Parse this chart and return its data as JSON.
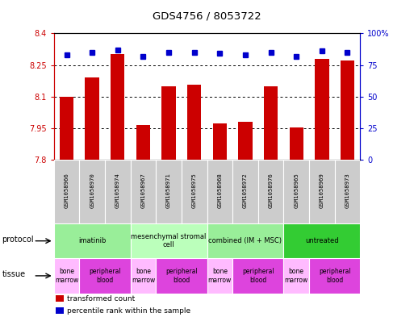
{
  "title": "GDS4756 / 8053722",
  "samples": [
    "GSM1058966",
    "GSM1058970",
    "GSM1058974",
    "GSM1058967",
    "GSM1058971",
    "GSM1058975",
    "GSM1058968",
    "GSM1058972",
    "GSM1058976",
    "GSM1058965",
    "GSM1058969",
    "GSM1058973"
  ],
  "bar_values": [
    8.1,
    8.19,
    8.3,
    7.965,
    8.15,
    8.155,
    7.975,
    7.98,
    8.15,
    7.955,
    8.28,
    8.27
  ],
  "dot_values": [
    83,
    85,
    87,
    82,
    85,
    85,
    84,
    83,
    85,
    82,
    86,
    85
  ],
  "ylim_left": [
    7.8,
    8.4
  ],
  "ylim_right": [
    0,
    100
  ],
  "yticks_left": [
    7.8,
    7.95,
    8.1,
    8.25,
    8.4
  ],
  "yticks_right": [
    0,
    25,
    50,
    75,
    100
  ],
  "ytick_labels_left": [
    "7.8",
    "7.95",
    "8.1",
    "8.25",
    "8.4"
  ],
  "ytick_labels_right": [
    "0",
    "25",
    "50",
    "75",
    "100%"
  ],
  "bar_color": "#cc0000",
  "dot_color": "#0000cc",
  "protocols": [
    {
      "label": "imatinib",
      "start": 0,
      "end": 3,
      "color": "#99ee99"
    },
    {
      "label": "mesenchymal stromal\ncell",
      "start": 3,
      "end": 6,
      "color": "#bbffbb"
    },
    {
      "label": "combined (IM + MSC)",
      "start": 6,
      "end": 9,
      "color": "#99ee99"
    },
    {
      "label": "untreated",
      "start": 9,
      "end": 12,
      "color": "#33cc33"
    }
  ],
  "tissues": [
    {
      "label": "bone\nmarrow",
      "start": 0,
      "end": 1,
      "color": "#ffbbff"
    },
    {
      "label": "peripheral\nblood",
      "start": 1,
      "end": 3,
      "color": "#dd44dd"
    },
    {
      "label": "bone\nmarrow",
      "start": 3,
      "end": 4,
      "color": "#ffbbff"
    },
    {
      "label": "peripheral\nblood",
      "start": 4,
      "end": 6,
      "color": "#dd44dd"
    },
    {
      "label": "bone\nmarrow",
      "start": 6,
      "end": 7,
      "color": "#ffbbff"
    },
    {
      "label": "peripheral\nblood",
      "start": 7,
      "end": 9,
      "color": "#dd44dd"
    },
    {
      "label": "bone\nmarrow",
      "start": 9,
      "end": 10,
      "color": "#ffbbff"
    },
    {
      "label": "peripheral\nblood",
      "start": 10,
      "end": 12,
      "color": "#dd44dd"
    }
  ],
  "legend_items": [
    {
      "label": "transformed count",
      "color": "#cc0000"
    },
    {
      "label": "percentile rank within the sample",
      "color": "#0000cc"
    }
  ],
  "protocol_label": "protocol",
  "tissue_label": "tissue",
  "sample_bg_color": "#cccccc",
  "fig_width": 5.13,
  "fig_height": 3.93,
  "dpi": 100
}
